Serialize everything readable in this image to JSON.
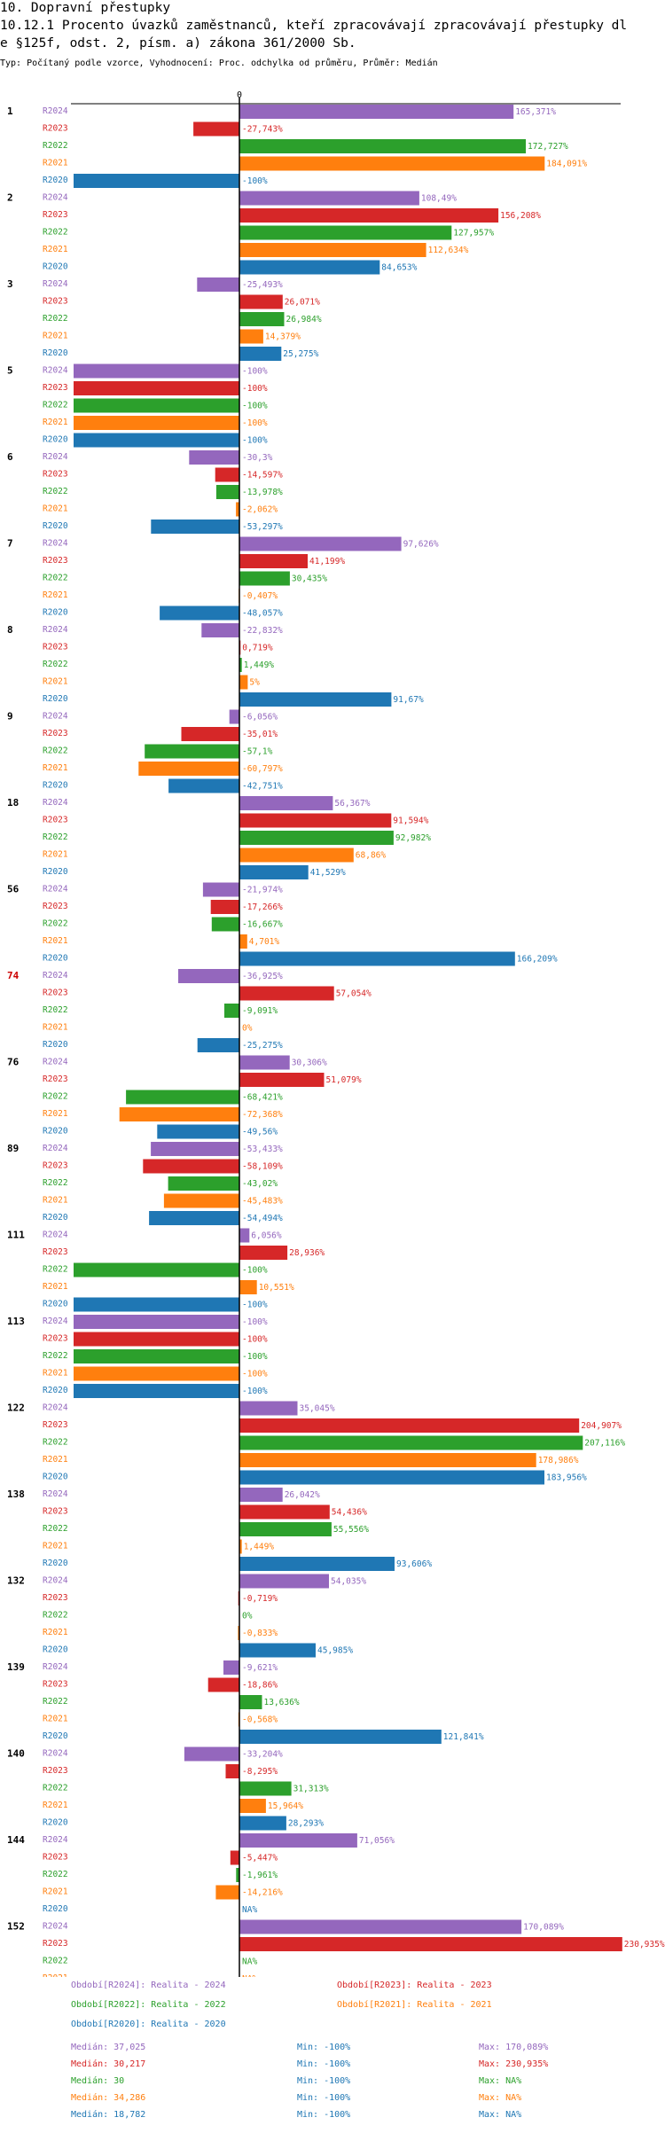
{
  "header": {
    "line1": "10. Dopravní přestupky",
    "line2": "10.12.1 Procento úvazků zaměstnanců, kteří zpracovávají zpracovávají přestupky dl",
    "line3": "e §125f, odst. 2, písm. a) zákona 361/2000 Sb.",
    "subtitle": "Typ: Počítaný podle vzorce, Vyhodnocení: Proc. odchylka od průměru, Průměr: Medián"
  },
  "colors": {
    "R2024": "#9467bd",
    "R2023": "#d62728",
    "R2022": "#2ca02c",
    "R2021": "#ff7f0e",
    "R2020": "#1f77b4",
    "highlight": "#cc0000"
  },
  "chart_data": {
    "type": "bar",
    "orientation": "horizontal",
    "axis_zero_label": "0",
    "value_suffix": "%",
    "na_label": "NA%",
    "series_labels": [
      "R2024",
      "R2023",
      "R2022",
      "R2021",
      "R2020"
    ],
    "highlight_group": "74",
    "groups": [
      {
        "label": "1",
        "values": [
          165.371,
          -27.743,
          172.727,
          184.091,
          -100
        ]
      },
      {
        "label": "2",
        "values": [
          108.49,
          156.208,
          127.957,
          112.634,
          84.653
        ]
      },
      {
        "label": "3",
        "values": [
          -25.493,
          26.071,
          26.984,
          14.379,
          25.275
        ]
      },
      {
        "label": "5",
        "values": [
          -100,
          -100,
          -100,
          -100,
          -100
        ]
      },
      {
        "label": "6",
        "values": [
          -30.3,
          -14.597,
          -13.978,
          -2.062,
          -53.297
        ]
      },
      {
        "label": "7",
        "values": [
          97.626,
          41.199,
          30.435,
          -0.407,
          -48.057
        ]
      },
      {
        "label": "8",
        "values": [
          -22.832,
          0.719,
          1.449,
          5,
          91.67
        ]
      },
      {
        "label": "9",
        "values": [
          -6.056,
          -35.01,
          -57.1,
          -60.797,
          -42.751
        ]
      },
      {
        "label": "18",
        "values": [
          56.367,
          91.594,
          92.982,
          68.86,
          41.529
        ]
      },
      {
        "label": "56",
        "values": [
          -21.974,
          -17.266,
          -16.667,
          4.701,
          166.209
        ]
      },
      {
        "label": "74",
        "values": [
          -36.925,
          57.054,
          -9.091,
          0,
          -25.275
        ]
      },
      {
        "label": "76",
        "values": [
          30.306,
          51.079,
          -68.421,
          -72.368,
          -49.56
        ]
      },
      {
        "label": "89",
        "values": [
          -53.433,
          -58.109,
          -43.02,
          -45.483,
          -54.494
        ]
      },
      {
        "label": "111",
        "values": [
          6.056,
          28.936,
          -100,
          10.551,
          -100
        ]
      },
      {
        "label": "113",
        "values": [
          -100,
          -100,
          -100,
          -100,
          -100
        ]
      },
      {
        "label": "122",
        "values": [
          35.045,
          204.907,
          207.116,
          178.986,
          183.956
        ]
      },
      {
        "label": "138",
        "values": [
          26.042,
          54.436,
          55.556,
          1.449,
          93.606
        ]
      },
      {
        "label": "132",
        "values": [
          54.035,
          -0.719,
          0,
          -0.833,
          45.985
        ]
      },
      {
        "label": "139",
        "values": [
          -9.621,
          -18.86,
          13.636,
          -0.568,
          121.841
        ]
      },
      {
        "label": "140",
        "values": [
          -33.204,
          -8.295,
          31.313,
          15.964,
          28.293
        ]
      },
      {
        "label": "144",
        "values": [
          71.056,
          -5.447,
          -1.961,
          -14.216,
          null
        ]
      },
      {
        "label": "152",
        "values": [
          170.089,
          230.935,
          null,
          null,
          null
        ]
      }
    ]
  },
  "footer": {
    "legend": [
      {
        "text": "Období[R2024]: Realita - 2024",
        "color": "#9467bd"
      },
      {
        "text": "Období[R2023]: Realita - 2023",
        "color": "#d62728"
      },
      {
        "text": "Období[R2022]: Realita - 2022",
        "color": "#2ca02c"
      },
      {
        "text": "Období[R2021]: Realita - 2021",
        "color": "#ff7f0e"
      },
      {
        "text": "Období[R2020]: Realita - 2020",
        "color": "#1f77b4"
      }
    ],
    "stats": [
      {
        "median": "Medián: 37,025",
        "min": "Min: -100%",
        "max": "Max: 170,089%",
        "color": "#9467bd"
      },
      {
        "median": "Medián: 30,217",
        "min": "Min: -100%",
        "max": "Max: 230,935%",
        "color": "#d62728"
      },
      {
        "median": "Medián: 30",
        "min": "Min: -100%",
        "max": "Max: NA%",
        "color": "#2ca02c"
      },
      {
        "median": "Medián: 34,286",
        "min": "Min: -100%",
        "max": "Max: NA%",
        "color": "#ff7f0e"
      },
      {
        "median": "Medián: 18,782",
        "min": "Min: -100%",
        "max": "Max: NA%",
        "color": "#1f77b4"
      }
    ]
  }
}
